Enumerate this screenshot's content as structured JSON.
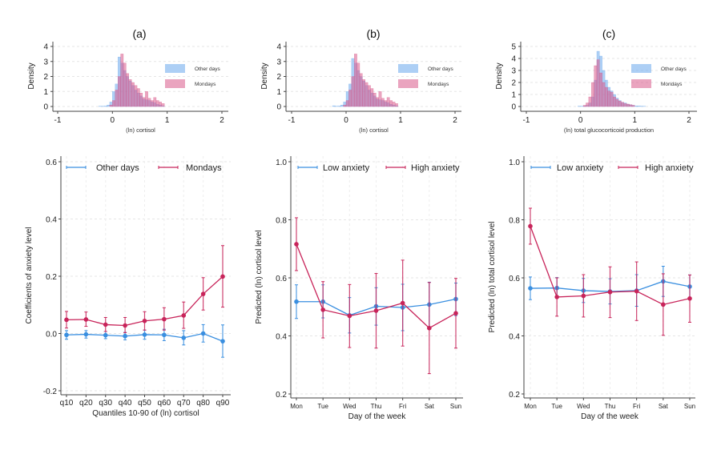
{
  "chart_data": [
    {
      "type": "histogram",
      "title": "(a)",
      "xlabel": "(ln) cortisol",
      "ylabel": "Density",
      "xlim": [
        -1,
        2
      ],
      "ylim": [
        0,
        4
      ],
      "xticks": [
        "-1",
        "0",
        "1",
        "2"
      ],
      "yticks": [
        "0",
        "1",
        "2",
        "3",
        "4"
      ],
      "legend": "right",
      "bin_width": 0.05,
      "series": [
        {
          "name": "Other days",
          "color": "#6aa8ec",
          "bin_start": -0.25,
          "density": [
            0.02,
            0.02,
            0.03,
            0.1,
            0.3,
            1.0,
            1.5,
            3.3,
            2.9,
            2.4,
            2.0,
            1.7,
            1.4,
            1.1,
            0.9,
            0.7,
            0.5,
            0.45,
            0.4,
            0.3,
            0.25,
            0.15,
            0.1,
            0.05
          ]
        },
        {
          "name": "Mondays",
          "color": "#d95a8a",
          "bin_start": -0.05,
          "density": [
            0.1,
            0.4,
            1.1,
            2.0,
            3.5,
            2.9,
            2.2,
            1.8,
            1.6,
            1.4,
            1.2,
            0.9,
            0.6,
            1.0,
            0.55,
            0.4,
            0.6,
            0.4,
            0.3,
            0.2
          ]
        }
      ]
    },
    {
      "type": "histogram",
      "title": "(b)",
      "xlabel": "(ln) cortisol",
      "ylabel": "Density",
      "xlim": [
        -1,
        2
      ],
      "ylim": [
        0,
        4
      ],
      "xticks": [
        "-1",
        "0",
        "1",
        "2"
      ],
      "yticks": [
        "0",
        "1",
        "2",
        "3",
        "4"
      ],
      "legend": "right",
      "bin_width": 0.05,
      "series": [
        {
          "name": "Other days",
          "color": "#6aa8ec",
          "bin_start": -0.25,
          "density": [
            0.05,
            0.02,
            0.03,
            0.1,
            0.3,
            1.0,
            1.5,
            3.2,
            2.9,
            2.4,
            2.0,
            1.7,
            1.4,
            1.1,
            0.9,
            0.7,
            0.5,
            0.45,
            0.4,
            0.3,
            0.25,
            0.15,
            0.1,
            0.05
          ]
        },
        {
          "name": "Mondays",
          "color": "#d95a8a",
          "bin_start": -0.05,
          "density": [
            0.1,
            0.4,
            1.1,
            2.0,
            3.5,
            2.9,
            2.2,
            1.8,
            1.6,
            1.4,
            1.2,
            0.9,
            0.6,
            1.0,
            0.55,
            0.4,
            0.6,
            0.4,
            0.3,
            0.2
          ]
        }
      ]
    },
    {
      "type": "histogram",
      "title": "(c)",
      "xlabel": "(ln) total glucocorticoid production",
      "ylabel": "Density",
      "xlim": [
        -1,
        2
      ],
      "ylim": [
        0,
        5
      ],
      "xticks": [
        "-1",
        "0",
        "1",
        "2"
      ],
      "yticks": [
        "0",
        "1",
        "2",
        "3",
        "4",
        "5"
      ],
      "legend": "right",
      "bin_width": 0.05,
      "series": [
        {
          "name": "Other days",
          "color": "#6aa8ec",
          "bin_start": -0.05,
          "density": [
            0.03,
            0.03,
            0.05,
            0.1,
            0.3,
            0.8,
            2.2,
            4.6,
            4.2,
            3.0,
            2.2,
            1.6,
            1.3,
            1.0,
            0.7,
            0.5,
            0.35,
            0.3,
            0.2,
            0.15,
            0.1,
            0.05,
            0.05,
            0.03,
            0.02
          ]
        },
        {
          "name": "Mondays",
          "color": "#d95a8a",
          "bin_start": 0.05,
          "density": [
            0.1,
            0.3,
            0.8,
            2.0,
            3.4,
            3.9,
            2.8,
            2.0,
            1.6,
            1.3,
            1.2,
            0.8,
            0.6,
            0.45,
            0.35,
            0.25,
            0.2,
            0.15,
            0.1
          ]
        }
      ]
    },
    {
      "type": "line",
      "xlabel": "Quantiles 10-90 of (ln) cortisol",
      "ylabel": "Coefficients of anxiety level",
      "categories": [
        "q10",
        "q20",
        "q30",
        "q40",
        "q50",
        "q60",
        "q70",
        "q80",
        "q90"
      ],
      "ylim": [
        -0.2,
        0.6
      ],
      "yticks": [
        "-0.2",
        "0.0",
        "0.2",
        "0.4",
        "0.6"
      ],
      "legend": "top",
      "grid": true,
      "series": [
        {
          "name": "Other days",
          "color": "#3a8fe0",
          "values": [
            -0.005,
            -0.003,
            -0.006,
            -0.009,
            -0.004,
            -0.005,
            -0.015,
            0.0,
            -0.027
          ],
          "ci_low": [
            -0.02,
            -0.016,
            -0.018,
            -0.022,
            -0.02,
            -0.025,
            -0.04,
            -0.03,
            -0.083
          ],
          "ci_high": [
            0.01,
            0.01,
            0.007,
            0.004,
            0.012,
            0.015,
            0.01,
            0.031,
            0.03
          ]
        },
        {
          "name": "Mondays",
          "color": "#c8245a",
          "values": [
            0.048,
            0.049,
            0.031,
            0.028,
            0.044,
            0.05,
            0.063,
            0.138,
            0.199
          ],
          "ci_low": [
            0.019,
            0.025,
            0.007,
            0.003,
            0.012,
            0.012,
            0.018,
            0.082,
            0.092
          ],
          "ci_high": [
            0.077,
            0.075,
            0.056,
            0.056,
            0.076,
            0.09,
            0.11,
            0.195,
            0.307
          ]
        }
      ]
    },
    {
      "type": "line",
      "xlabel": "Day of the week",
      "ylabel": "Predicted (ln) cortisol level",
      "categories": [
        "Mon",
        "Tue",
        "Wed",
        "Thu",
        "Fri",
        "Sat",
        "Sun"
      ],
      "ylim": [
        0.2,
        1.0
      ],
      "yticks": [
        "0.2",
        "0.4",
        "0.6",
        "0.8",
        "1.0"
      ],
      "legend": "top",
      "grid": true,
      "series": [
        {
          "name": "Low anxiety",
          "color": "#3a8fe0",
          "values": [
            0.518,
            0.518,
            0.471,
            0.502,
            0.498,
            0.508,
            0.527
          ],
          "ci_low": [
            0.46,
            0.462,
            0.41,
            0.437,
            0.418,
            0.43,
            0.47
          ],
          "ci_high": [
            0.576,
            0.576,
            0.532,
            0.566,
            0.578,
            0.585,
            0.582
          ]
        },
        {
          "name": "High anxiety",
          "color": "#c8245a",
          "values": [
            0.716,
            0.49,
            0.469,
            0.487,
            0.513,
            0.427,
            0.478
          ],
          "ci_low": [
            0.625,
            0.393,
            0.36,
            0.358,
            0.365,
            0.27,
            0.358
          ],
          "ci_high": [
            0.807,
            0.587,
            0.577,
            0.615,
            0.661,
            0.584,
            0.598
          ]
        }
      ]
    },
    {
      "type": "line",
      "xlabel": "Day of the week",
      "ylabel": "Predicted (ln) total cortisol level",
      "categories": [
        "Mon",
        "Tue",
        "Wed",
        "Thu",
        "Fri",
        "Sat",
        "Sun"
      ],
      "ylim": [
        0.2,
        1.0
      ],
      "yticks": [
        "0.2",
        "0.4",
        "0.6",
        "0.8",
        "1.0"
      ],
      "legend": "top",
      "grid": true,
      "series": [
        {
          "name": "Low anxiety",
          "color": "#3a8fe0",
          "values": [
            0.564,
            0.565,
            0.556,
            0.553,
            0.556,
            0.588,
            0.57
          ],
          "ci_low": [
            0.525,
            0.53,
            0.515,
            0.51,
            0.502,
            0.536,
            0.53
          ],
          "ci_high": [
            0.603,
            0.601,
            0.598,
            0.597,
            0.611,
            0.64,
            0.61
          ]
        },
        {
          "name": "High anxiety",
          "color": "#c8245a",
          "values": [
            0.778,
            0.534,
            0.538,
            0.551,
            0.554,
            0.508,
            0.529
          ],
          "ci_low": [
            0.716,
            0.468,
            0.465,
            0.463,
            0.453,
            0.402,
            0.447
          ],
          "ci_high": [
            0.84,
            0.6,
            0.611,
            0.638,
            0.655,
            0.614,
            0.61
          ]
        }
      ]
    }
  ]
}
